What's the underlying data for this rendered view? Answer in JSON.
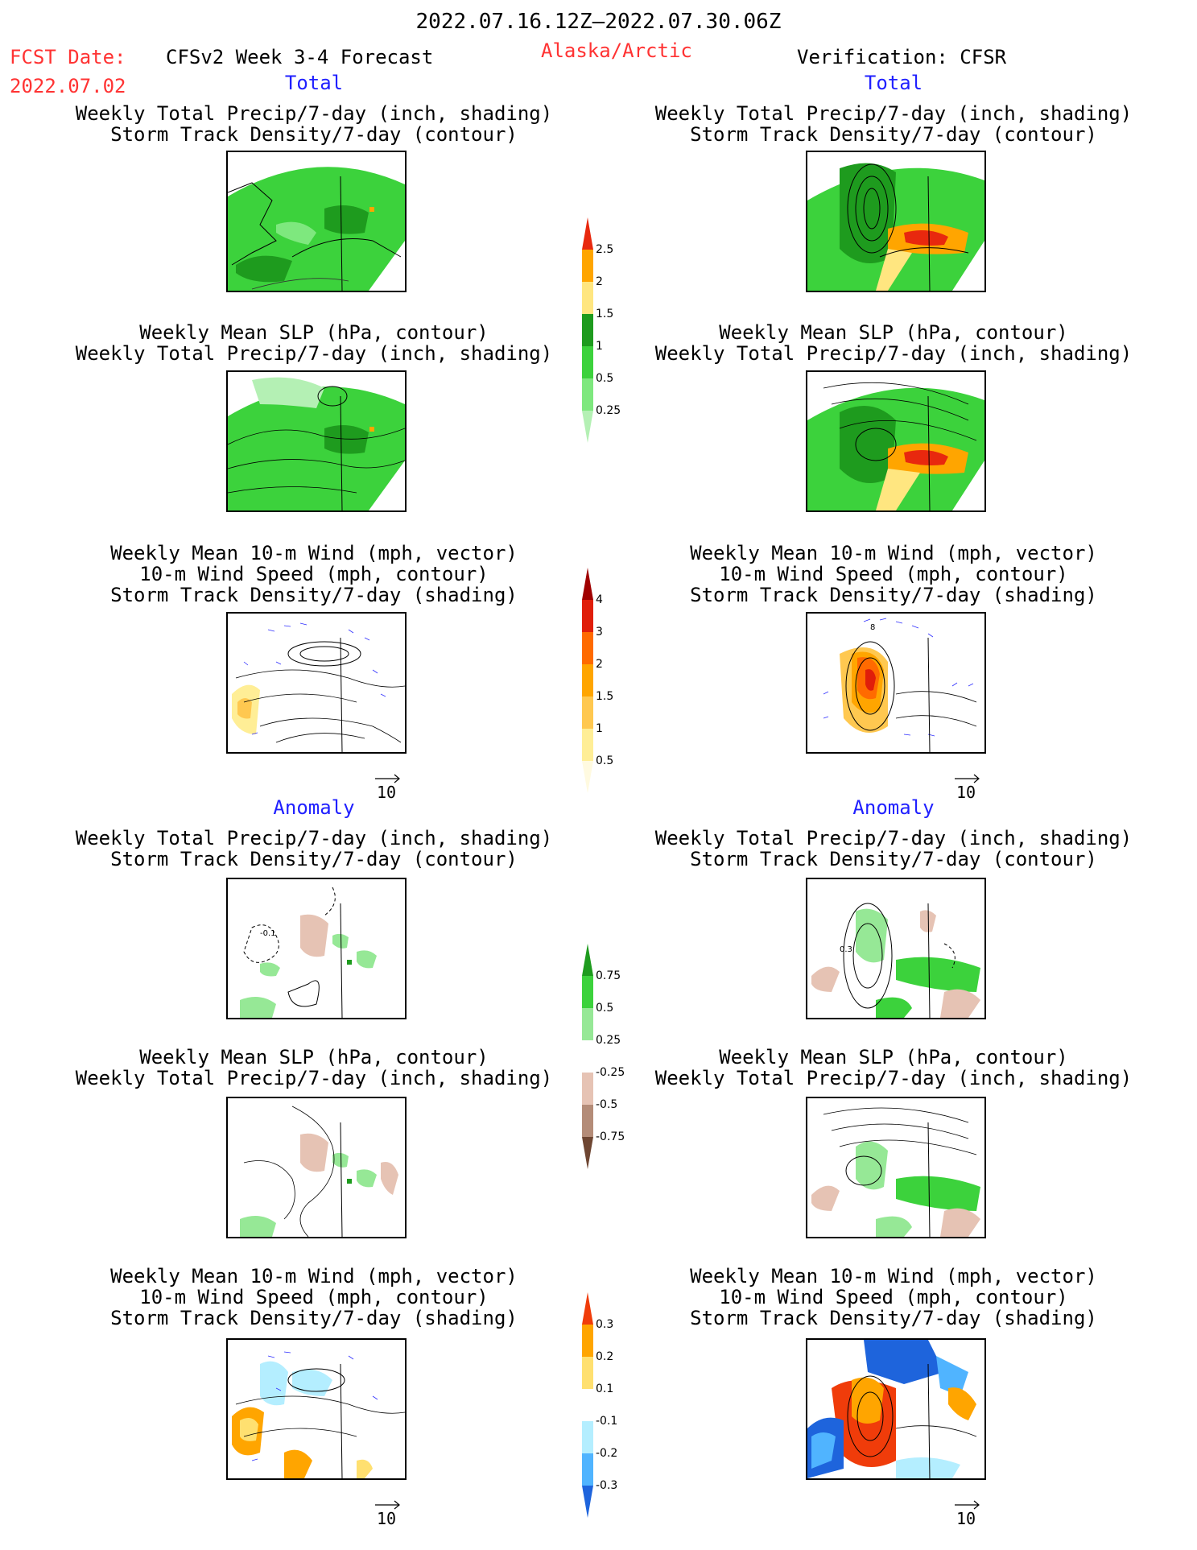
{
  "header": {
    "date_range": "2022.07.16.12Z–2022.07.30.06Z",
    "fcst_label": "FCST Date:",
    "fcst_date": "2022.07.02",
    "forecast_title": "CFSv2 Week 3-4 Forecast",
    "region": "Alaska/Arctic",
    "verification": "Verification: CFSR"
  },
  "sections": {
    "total": "Total",
    "anomaly": "Anomaly"
  },
  "titles": {
    "precip_storm": [
      "Weekly Total Precip/7-day (inch, shading)",
      "Storm Track Density/7-day (contour)"
    ],
    "slp_precip": [
      "Weekly Mean SLP (hPa, contour)",
      "Weekly Total Precip/7-day (inch, shading)"
    ],
    "wind_storm": [
      "Weekly Mean 10-m Wind (mph, vector)",
      "10-m Wind Speed (mph, contour)",
      "Storm Track Density/7-day (shading)"
    ]
  },
  "vector_ref": "10",
  "contour_labels": {
    "anom_left": "-0.1",
    "anom_right": "0.3",
    "wind_right": "8"
  },
  "colorbars": {
    "precip_total": {
      "labels": [
        "2.5",
        "2",
        "1.5",
        "1",
        "0.5",
        "0.25"
      ],
      "colors": [
        "#e8280e",
        "#ffa500",
        "#ffe680",
        "#1e9b1e",
        "#3cd23c",
        "#7ee87e",
        "#b4f0b4"
      ]
    },
    "storm_total": {
      "labels": [
        "4",
        "3",
        "2",
        "1.5",
        "1",
        "0.5"
      ],
      "colors": [
        "#a00000",
        "#e01e0a",
        "#ff6a00",
        "#ffa500",
        "#ffc850",
        "#ffee96",
        "#fffae0"
      ]
    },
    "precip_anom": {
      "labels": [
        "0.75",
        "0.5",
        "0.25",
        "-0.25",
        "-0.5",
        "-0.75"
      ],
      "colors": [
        "#1e9b1e",
        "#3cd23c",
        "#96e896",
        "#ffffff",
        "#e6c3b4",
        "#b48c78",
        "#6e4632"
      ]
    },
    "storm_anom": {
      "labels": [
        "0.3",
        "0.2",
        "0.1",
        "-0.1",
        "-0.2",
        "-0.3"
      ],
      "colors": [
        "#f03c0a",
        "#ffa500",
        "#ffe070",
        "#ffffff",
        "#b4eeff",
        "#50b4ff",
        "#1e64dc"
      ]
    }
  }
}
